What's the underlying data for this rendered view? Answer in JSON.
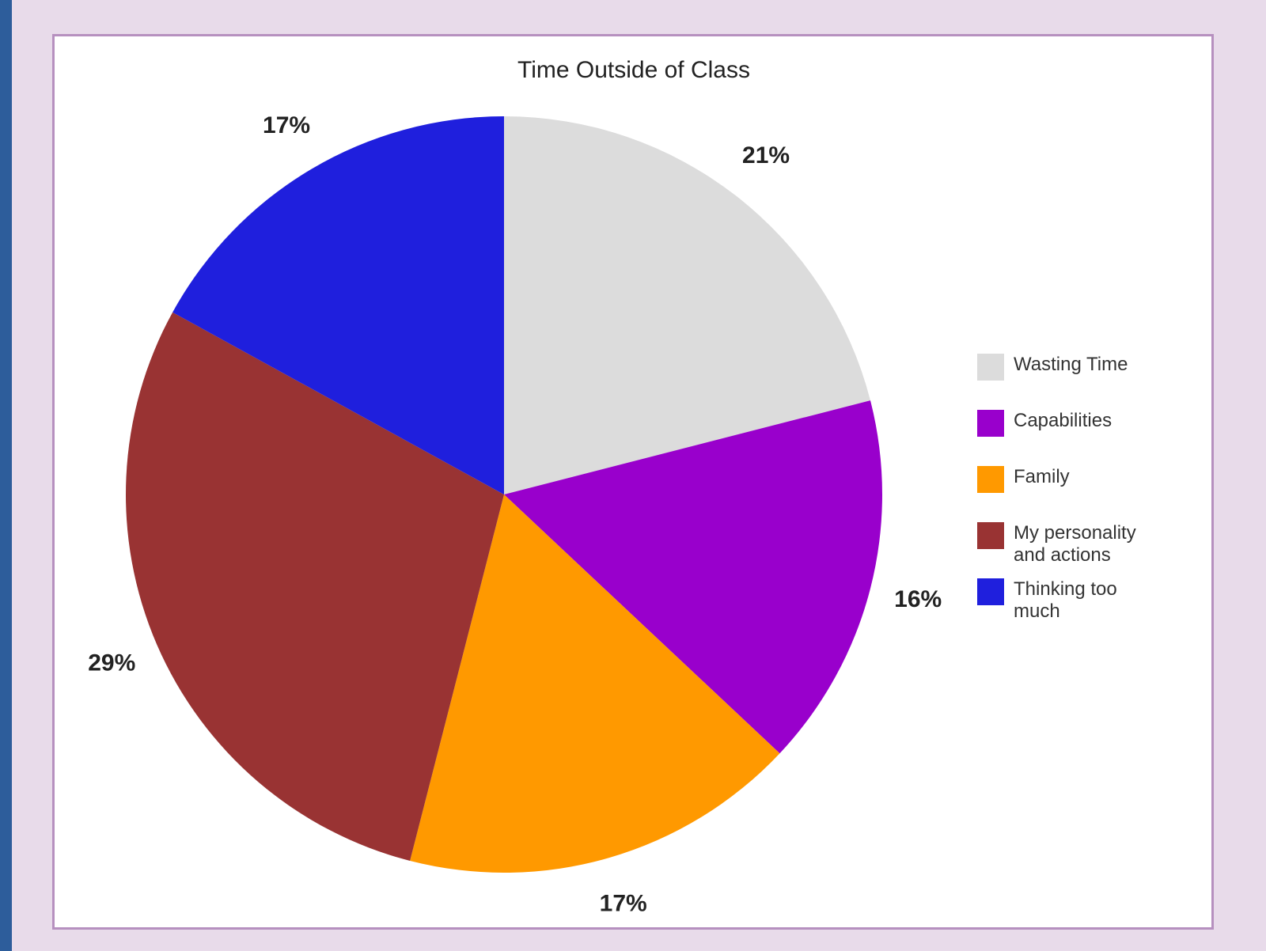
{
  "chart_data": {
    "type": "pie",
    "title": "Time Outside of Class",
    "categories": [
      "Wasting Time",
      "Capabilities",
      "Family",
      "My personality and actions",
      "Thinking too much"
    ],
    "values": [
      21,
      16,
      17,
      29,
      17
    ],
    "value_labels": [
      "21%",
      "16%",
      "17%",
      "29%",
      "17%"
    ],
    "colors": [
      "#dcdcdc",
      "#9900cc",
      "#ff9900",
      "#993333",
      "#1f1fdd"
    ],
    "legend": "right"
  }
}
